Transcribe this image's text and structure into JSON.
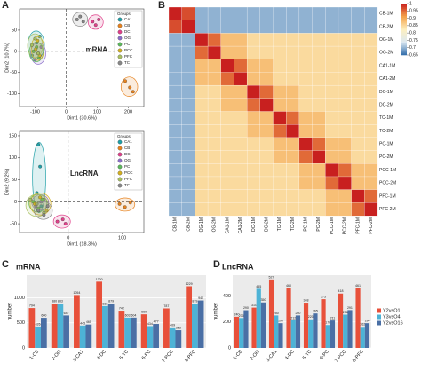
{
  "chart_data": [
    {
      "type": "scatter",
      "panel": "A",
      "annotation": "mRNA",
      "legend_title": "Groups",
      "xlabel": "Dim1 (30.6%)",
      "ylabel": "Dim2 (10.7%)",
      "xlim": [
        -150,
        250
      ],
      "ylim": [
        -130,
        100
      ],
      "xticks": [
        -100,
        0,
        100,
        200
      ],
      "yticks": [
        -100,
        -50,
        0,
        50
      ],
      "series": [
        {
          "name": "CA1",
          "color": "#20a0a8",
          "x": [
            -110,
            -95,
            -85
          ],
          "values": [
            -10,
            20,
            35
          ]
        },
        {
          "name": "CB",
          "color": "#e6821e",
          "x": [
            190,
            205,
            215
          ],
          "values": [
            -70,
            -85,
            -95
          ]
        },
        {
          "name": "DC",
          "color": "#e0408a",
          "x": [
            85,
            95,
            105
          ],
          "values": [
            70,
            62,
            75
          ]
        },
        {
          "name": "OG",
          "color": "#8a6ec8",
          "x": [
            -100,
            -90,
            -80
          ],
          "values": [
            -20,
            -5,
            10
          ]
        },
        {
          "name": "PC",
          "color": "#5cb85c",
          "x": [
            -105,
            -95,
            -88
          ],
          "values": [
            0,
            10,
            -15
          ]
        },
        {
          "name": "PCC",
          "color": "#d4b020",
          "x": [
            -98,
            -85,
            -92
          ],
          "values": [
            5,
            -10,
            25
          ]
        },
        {
          "name": "PFC",
          "color": "#a8c060",
          "x": [
            -110,
            -100,
            -90
          ],
          "values": [
            15,
            30,
            -5
          ]
        },
        {
          "name": "TC",
          "color": "#888888",
          "x": [
            35,
            45,
            55
          ],
          "values": [
            75,
            82,
            70
          ]
        }
      ]
    },
    {
      "type": "scatter",
      "annotation": "LncRNA",
      "legend_title": "Groups",
      "xlabel": "Dim1 (18.3%)",
      "ylabel": "Dim2 (9.2%)",
      "xlim": [
        -90,
        140
      ],
      "ylim": [
        -70,
        160
      ],
      "xticks": [
        0,
        100
      ],
      "yticks": [
        -50,
        0,
        50,
        100,
        150
      ],
      "series": [
        {
          "name": "CA1",
          "color": "#20a0a8",
          "x": [
            -55,
            -52,
            -58,
            -50
          ],
          "values": [
            130,
            80,
            20,
            -10
          ]
        },
        {
          "name": "CB",
          "color": "#e6821e",
          "x": [
            95,
            105,
            115
          ],
          "values": [
            -5,
            -12,
            -2
          ]
        },
        {
          "name": "DC",
          "color": "#e0408a",
          "x": [
            -20,
            -10,
            -5
          ],
          "values": [
            -45,
            -40,
            -50
          ]
        },
        {
          "name": "OG",
          "color": "#8a6ec8",
          "x": [
            -60,
            -50,
            -45
          ],
          "values": [
            -10,
            0,
            5
          ]
        },
        {
          "name": "PC",
          "color": "#5cb85c",
          "x": [
            -65,
            -55,
            -48
          ],
          "values": [
            0,
            -15,
            5
          ]
        },
        {
          "name": "PCC",
          "color": "#d4b020",
          "x": [
            -62,
            -52,
            -40
          ],
          "values": [
            -5,
            10,
            -20
          ]
        },
        {
          "name": "PFC",
          "color": "#a8c060",
          "x": [
            -70,
            -58,
            -45
          ],
          "values": [
            5,
            -5,
            -25
          ]
        },
        {
          "name": "TC",
          "color": "#888888",
          "x": [
            -55,
            -45,
            -38
          ],
          "values": [
            -20,
            -30,
            -10
          ]
        }
      ]
    },
    {
      "type": "heatmap",
      "panel": "B",
      "labels": [
        "CB-1M",
        "CB-2M",
        "OG-1M",
        "OG-2M",
        "CA1-1M",
        "CA1-2M",
        "DC-1M",
        "DC-2M",
        "TC-1M",
        "TC-2M",
        "PC-1M",
        "PC-2M",
        "PCC-1M",
        "PCC-2M",
        "PFC-1M",
        "PFC-2M"
      ],
      "zlim": [
        0.65,
        1
      ],
      "colors": [
        "#2c6aa8",
        "#dbe8f2",
        "#fdf0c0",
        "#f4a24a",
        "#c8201f"
      ],
      "colorbar_ticks": [
        1,
        0.95,
        0.9,
        0.85,
        0.8,
        0.75,
        0.7,
        0.65
      ],
      "values": [
        [
          1,
          0.97,
          0.7,
          0.7,
          0.7,
          0.7,
          0.7,
          0.7,
          0.7,
          0.7,
          0.7,
          0.7,
          0.7,
          0.7,
          0.7,
          0.7
        ],
        [
          0.97,
          1,
          0.7,
          0.7,
          0.7,
          0.7,
          0.7,
          0.7,
          0.7,
          0.7,
          0.7,
          0.7,
          0.7,
          0.7,
          0.7,
          0.7
        ],
        [
          0.7,
          0.7,
          1,
          0.95,
          0.88,
          0.88,
          0.85,
          0.85,
          0.85,
          0.85,
          0.85,
          0.85,
          0.85,
          0.85,
          0.85,
          0.85
        ],
        [
          0.7,
          0.7,
          0.95,
          1,
          0.88,
          0.88,
          0.85,
          0.85,
          0.85,
          0.85,
          0.85,
          0.85,
          0.85,
          0.85,
          0.85,
          0.85
        ],
        [
          0.7,
          0.7,
          0.88,
          0.88,
          1,
          0.95,
          0.88,
          0.88,
          0.85,
          0.85,
          0.85,
          0.85,
          0.85,
          0.85,
          0.85,
          0.85
        ],
        [
          0.7,
          0.7,
          0.88,
          0.88,
          0.95,
          1,
          0.88,
          0.88,
          0.85,
          0.85,
          0.85,
          0.85,
          0.85,
          0.85,
          0.85,
          0.85
        ],
        [
          0.7,
          0.7,
          0.85,
          0.85,
          0.88,
          0.88,
          1,
          0.95,
          0.88,
          0.88,
          0.85,
          0.85,
          0.85,
          0.85,
          0.85,
          0.85
        ],
        [
          0.7,
          0.7,
          0.85,
          0.85,
          0.88,
          0.88,
          0.95,
          1,
          0.88,
          0.88,
          0.85,
          0.85,
          0.85,
          0.85,
          0.85,
          0.85
        ],
        [
          0.7,
          0.7,
          0.85,
          0.85,
          0.85,
          0.85,
          0.88,
          0.88,
          1,
          0.95,
          0.88,
          0.88,
          0.85,
          0.85,
          0.85,
          0.85
        ],
        [
          0.7,
          0.7,
          0.85,
          0.85,
          0.85,
          0.85,
          0.88,
          0.88,
          0.95,
          1,
          0.88,
          0.88,
          0.85,
          0.85,
          0.85,
          0.85
        ],
        [
          0.7,
          0.7,
          0.85,
          0.85,
          0.85,
          0.85,
          0.85,
          0.85,
          0.88,
          0.88,
          1,
          0.95,
          0.88,
          0.88,
          0.85,
          0.85
        ],
        [
          0.7,
          0.7,
          0.85,
          0.85,
          0.85,
          0.85,
          0.85,
          0.85,
          0.88,
          0.88,
          0.95,
          1,
          0.88,
          0.88,
          0.85,
          0.85
        ],
        [
          0.7,
          0.7,
          0.85,
          0.85,
          0.85,
          0.85,
          0.85,
          0.85,
          0.85,
          0.85,
          0.88,
          0.88,
          1,
          0.95,
          0.88,
          0.88
        ],
        [
          0.7,
          0.7,
          0.85,
          0.85,
          0.85,
          0.85,
          0.85,
          0.85,
          0.85,
          0.85,
          0.88,
          0.88,
          0.95,
          1,
          0.88,
          0.88
        ],
        [
          0.7,
          0.7,
          0.85,
          0.85,
          0.85,
          0.85,
          0.85,
          0.85,
          0.85,
          0.85,
          0.85,
          0.85,
          0.88,
          0.88,
          1,
          0.95
        ],
        [
          0.7,
          0.7,
          0.85,
          0.85,
          0.85,
          0.85,
          0.85,
          0.85,
          0.85,
          0.85,
          0.85,
          0.85,
          0.88,
          0.88,
          0.95,
          1
        ]
      ]
    },
    {
      "type": "bar",
      "panel": "C",
      "title": "mRNA",
      "ylabel": "number",
      "grid": true,
      "categories": [
        "1-CB",
        "2-OG",
        "3-CA1",
        "4-DC",
        "5-TC",
        "6-PC",
        "7-PCC",
        "8-PFC"
      ],
      "ylim": [
        0,
        1450
      ],
      "yticks": [
        0,
        500,
        1000
      ],
      "series": [
        {
          "color": "#e8503a",
          "values": [
            794,
            880,
            1054,
            1320,
            742,
            669,
            787,
            1229
          ]
        },
        {
          "color": "#4db3d6",
          "values": [
            426,
            883,
            445,
            833,
            603,
            434,
            409,
            879
          ]
        },
        {
          "color": "#4a6fa5",
          "values": [
            600,
            647,
            465,
            879,
            604,
            477,
            353,
            945
          ]
        }
      ]
    },
    {
      "type": "bar",
      "panel": "D",
      "title": "LncRNA",
      "ylabel": "number",
      "grid": true,
      "categories": [
        "1-CB",
        "2-OG",
        "3-CA1",
        "4-DC",
        "5-TC",
        "6-PC",
        "7-PCC",
        "8-PFC"
      ],
      "ylim": [
        0,
        560
      ],
      "yticks": [
        0,
        200,
        400
      ],
      "series": [
        {
          "name": "Y2vsO1",
          "color": "#e8503a",
          "values": [
            240,
            310,
            527,
            460,
            348,
            375,
            418,
            461
          ]
        },
        {
          "name": "Y3vsO4",
          "color": "#4db3d6",
          "values": [
            230,
            455,
            250,
            212,
            220,
            176,
            256,
            162
          ]
        },
        {
          "name": "Y2vsO16",
          "color": "#4a6fa5",
          "values": [
            290,
            350,
            190,
            250,
            265,
            211,
            291,
            190
          ]
        }
      ]
    }
  ]
}
